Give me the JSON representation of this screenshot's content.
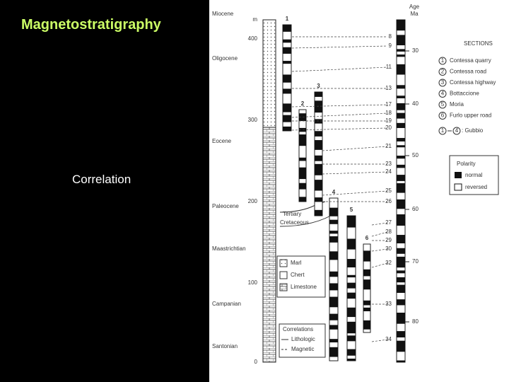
{
  "header": {
    "title": "Magnetostratigraphy",
    "subtitle": "Correlation"
  },
  "figure": {
    "meter_unit": "m",
    "meters": [
      400,
      300,
      200,
      100,
      0
    ],
    "stages": [
      "Miocene",
      "Oligocene",
      "Eocene",
      "Paleocene",
      "Maastrichtian",
      "Campanian",
      "Santonian"
    ],
    "sections_numbers": [
      "1",
      "2",
      "3",
      "4",
      "5",
      "6"
    ],
    "age_label": "Age",
    "age_unit": "Ma",
    "ages": [
      30,
      40,
      50,
      60,
      70,
      80
    ],
    "chrons": [
      "8",
      "9",
      "11",
      "13",
      "17",
      "18",
      "19",
      "20",
      "21",
      "23",
      "24",
      "25",
      "26",
      "27",
      "28",
      "29",
      "30",
      "32",
      "33",
      "34"
    ],
    "boundary": [
      "Tertiary",
      "Cretaceous"
    ],
    "sections_title": "SECTIONS",
    "sections": [
      {
        "number": "1",
        "name": "Contessa quarry"
      },
      {
        "number": "2",
        "name": "Contessa road"
      },
      {
        "number": "3",
        "name": "Contessa highway"
      },
      {
        "number": "4",
        "name": "Bottaccione"
      },
      {
        "number": "5",
        "name": "Moria"
      },
      {
        "number": "6",
        "name": "Furlo upper road"
      }
    ],
    "gubbio": {
      "from": "1",
      "to": "4",
      "label": ": Gubbio"
    },
    "polarity": {
      "title": "Polarity",
      "normal": "normal",
      "reversed": "reversed"
    },
    "lithology": [
      "Marl",
      "Chert",
      "Limestone"
    ],
    "correlations": {
      "title": "Correlations",
      "items": [
        "Lithologic",
        "Magnetic"
      ]
    }
  }
}
